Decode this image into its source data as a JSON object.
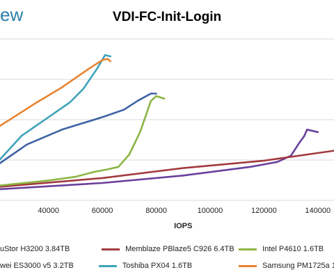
{
  "header": {
    "brand": "ew"
  },
  "chart_data": {
    "type": "line",
    "title": "VDI-FC-Init-Login",
    "xlabel": "IOPS",
    "ylabel": "",
    "x_ticks": [
      40000,
      60000,
      80000,
      100000,
      120000,
      140000
    ],
    "x_tick_labels": [
      "40000",
      "60000",
      "80000",
      "100000",
      "120000",
      "140000"
    ],
    "xlim": [
      22000,
      146000
    ],
    "grid": "horizontal",
    "legend_position": "bottom",
    "colors": [
      "#5e3c99",
      "#a23a3e",
      "#8cb543",
      "#3d62a3",
      "#3ea3b8",
      "#e8822f"
    ],
    "series": [
      {
        "name": "uStor H3200 3.84TB",
        "color": "#6a3f9c",
        "points": [
          [
            22000,
            0.09
          ],
          [
            60000,
            0.14
          ],
          [
            90000,
            0.2
          ],
          [
            115000,
            0.27
          ],
          [
            125000,
            0.31
          ],
          [
            130000,
            0.36
          ],
          [
            133000,
            0.46
          ],
          [
            135000,
            0.52
          ],
          [
            136000,
            0.57
          ],
          [
            140000,
            0.55
          ]
        ]
      },
      {
        "name": "Memblaze PBlaze5 C926 6.4TB",
        "color": "#a23a3e",
        "points": [
          [
            22000,
            0.11
          ],
          [
            60000,
            0.18
          ],
          [
            90000,
            0.26
          ],
          [
            120000,
            0.32
          ],
          [
            146000,
            0.4
          ]
        ]
      },
      {
        "name": "Intel P4610 1.6TB",
        "color": "#8cb543",
        "points": [
          [
            22000,
            0.12
          ],
          [
            40000,
            0.16
          ],
          [
            50000,
            0.19
          ],
          [
            57000,
            0.23
          ],
          [
            62000,
            0.25
          ],
          [
            66000,
            0.27
          ],
          [
            70000,
            0.37
          ],
          [
            74000,
            0.55
          ],
          [
            78000,
            0.8
          ],
          [
            80000,
            0.84
          ],
          [
            83000,
            0.82
          ]
        ]
      },
      {
        "name": "wei ES3000 v5 3.2TB",
        "color": "#3d62a3",
        "points": [
          [
            22000,
            0.3
          ],
          [
            32000,
            0.45
          ],
          [
            45000,
            0.57
          ],
          [
            60000,
            0.67
          ],
          [
            68000,
            0.73
          ],
          [
            73000,
            0.8
          ],
          [
            78000,
            0.86
          ],
          [
            80000,
            0.86
          ]
        ]
      },
      {
        "name": "Toshiba PX04 1.6TB",
        "color": "#3ea3b8",
        "points": [
          [
            22000,
            0.33
          ],
          [
            30000,
            0.52
          ],
          [
            40000,
            0.67
          ],
          [
            48000,
            0.79
          ],
          [
            53000,
            0.9
          ],
          [
            58000,
            1.06
          ],
          [
            61000,
            1.17
          ],
          [
            63000,
            1.16
          ]
        ]
      },
      {
        "name": "Samsung PM1725a 1",
        "color": "#e8822f",
        "points": [
          [
            22000,
            0.6
          ],
          [
            35000,
            0.78
          ],
          [
            45000,
            0.91
          ],
          [
            55000,
            1.06
          ],
          [
            60000,
            1.13
          ],
          [
            62000,
            1.14
          ],
          [
            63000,
            1.12
          ]
        ]
      }
    ]
  }
}
